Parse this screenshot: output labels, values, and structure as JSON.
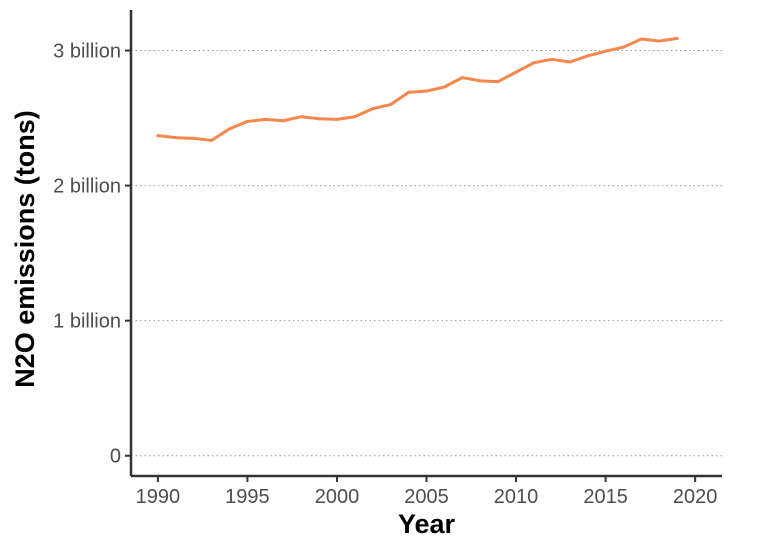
{
  "chart_data": {
    "type": "line",
    "title": "",
    "xlabel": "Year",
    "ylabel": "N2O emissions (tons)",
    "xlim": [
      1988.5,
      2021.5
    ],
    "ylim": [
      -0.15,
      3.3
    ],
    "x_ticks": [
      1990,
      1995,
      2000,
      2005,
      2010,
      2015,
      2020
    ],
    "x_tick_labels": [
      "1990",
      "1995",
      "2000",
      "2005",
      "2010",
      "2015",
      "2020"
    ],
    "y_ticks": [
      0,
      1,
      2,
      3
    ],
    "y_tick_labels": [
      "0",
      "1 billion",
      "2 billion",
      "3 billion"
    ],
    "y_unit": "billion tons",
    "grid": "horizontal dotted",
    "legend": "none",
    "colors": {
      "line": "#f4874b"
    },
    "x": [
      1990,
      1991,
      1992,
      1993,
      1994,
      1995,
      1996,
      1997,
      1998,
      1999,
      2000,
      2001,
      2002,
      2003,
      2004,
      2005,
      2006,
      2007,
      2008,
      2009,
      2010,
      2011,
      2012,
      2013,
      2014,
      2015,
      2016,
      2017,
      2018,
      2019
    ],
    "series": [
      {
        "values": [
          2.37,
          2.355,
          2.35,
          2.335,
          2.42,
          2.475,
          2.49,
          2.48,
          2.51,
          2.495,
          2.49,
          2.51,
          2.57,
          2.6,
          2.69,
          2.7,
          2.73,
          2.8,
          2.775,
          2.77,
          2.84,
          2.91,
          2.935,
          2.915,
          2.96,
          2.995,
          3.025,
          3.085,
          3.07,
          3.09
        ]
      }
    ]
  }
}
